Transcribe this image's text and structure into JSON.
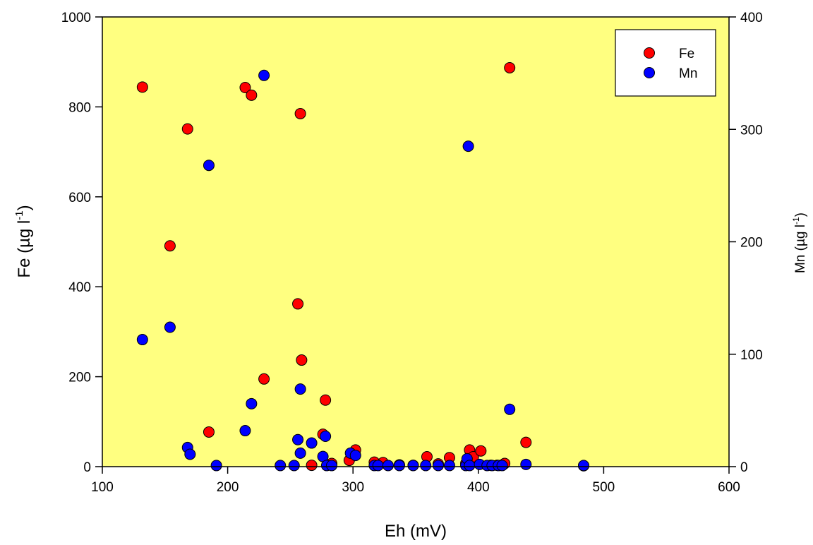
{
  "chart_data": {
    "type": "scatter",
    "title": "",
    "xlabel": "Eh (mV)",
    "ylabel_left": {
      "text": "Fe (µg l",
      "sup": "-1",
      "tail": ")"
    },
    "ylabel_right": {
      "text": "Mn (µg l",
      "sup": "-1",
      "tail": ")"
    },
    "xlim": [
      100,
      600
    ],
    "ylim_left": [
      0,
      1000
    ],
    "ylim_right": [
      0,
      400
    ],
    "x_ticks": [
      "100",
      "200",
      "300",
      "400",
      "500",
      "600"
    ],
    "y_left_ticks": [
      "0",
      "200",
      "400",
      "600",
      "800",
      "1000"
    ],
    "y_right_ticks": [
      "0",
      "100",
      "200",
      "300",
      "400"
    ],
    "plot_background": "#ffff80",
    "grid": false,
    "legend_position": "top-right",
    "series": [
      {
        "name": "Fe",
        "axis": "left",
        "color": "#ff0000",
        "points": [
          [
            132,
            844
          ],
          [
            154,
            491
          ],
          [
            168,
            751
          ],
          [
            185,
            77
          ],
          [
            214,
            843
          ],
          [
            219,
            826
          ],
          [
            229,
            195
          ],
          [
            256,
            362
          ],
          [
            258,
            785
          ],
          [
            259,
            237
          ],
          [
            267,
            3
          ],
          [
            276,
            72
          ],
          [
            278,
            148
          ],
          [
            283,
            7
          ],
          [
            297,
            14
          ],
          [
            302,
            37
          ],
          [
            317,
            10
          ],
          [
            324,
            9
          ],
          [
            337,
            4
          ],
          [
            348,
            3
          ],
          [
            359,
            22
          ],
          [
            368,
            6
          ],
          [
            377,
            20
          ],
          [
            390,
            7
          ],
          [
            393,
            37
          ],
          [
            396,
            22
          ],
          [
            402,
            35
          ],
          [
            410,
            3
          ],
          [
            415,
            3
          ],
          [
            420,
            5
          ],
          [
            421,
            7
          ],
          [
            425,
            887
          ],
          [
            438,
            54
          ],
          [
            484,
            2
          ]
        ]
      },
      {
        "name": "Mn",
        "axis": "right",
        "color": "#0000ff",
        "points": [
          [
            132,
            113
          ],
          [
            154,
            124
          ],
          [
            168,
            17
          ],
          [
            170,
            11
          ],
          [
            185,
            268
          ],
          [
            191,
            1
          ],
          [
            214,
            32
          ],
          [
            219,
            56
          ],
          [
            229,
            348
          ],
          [
            242,
            1
          ],
          [
            253,
            1
          ],
          [
            256,
            24
          ],
          [
            258,
            69
          ],
          [
            258,
            12
          ],
          [
            267,
            21
          ],
          [
            276,
            9
          ],
          [
            278,
            27
          ],
          [
            279,
            1
          ],
          [
            283,
            1
          ],
          [
            298,
            12
          ],
          [
            302,
            10
          ],
          [
            317,
            1
          ],
          [
            320,
            1
          ],
          [
            328,
            1
          ],
          [
            337,
            1
          ],
          [
            348,
            1
          ],
          [
            358,
            1
          ],
          [
            368,
            1
          ],
          [
            377,
            1
          ],
          [
            390,
            1
          ],
          [
            391,
            7
          ],
          [
            392,
            285
          ],
          [
            393,
            1
          ],
          [
            401,
            2
          ],
          [
            407,
            1
          ],
          [
            411,
            1
          ],
          [
            416,
            1
          ],
          [
            419,
            1
          ],
          [
            425,
            51
          ],
          [
            438,
            2
          ],
          [
            484,
            1
          ]
        ]
      }
    ]
  }
}
